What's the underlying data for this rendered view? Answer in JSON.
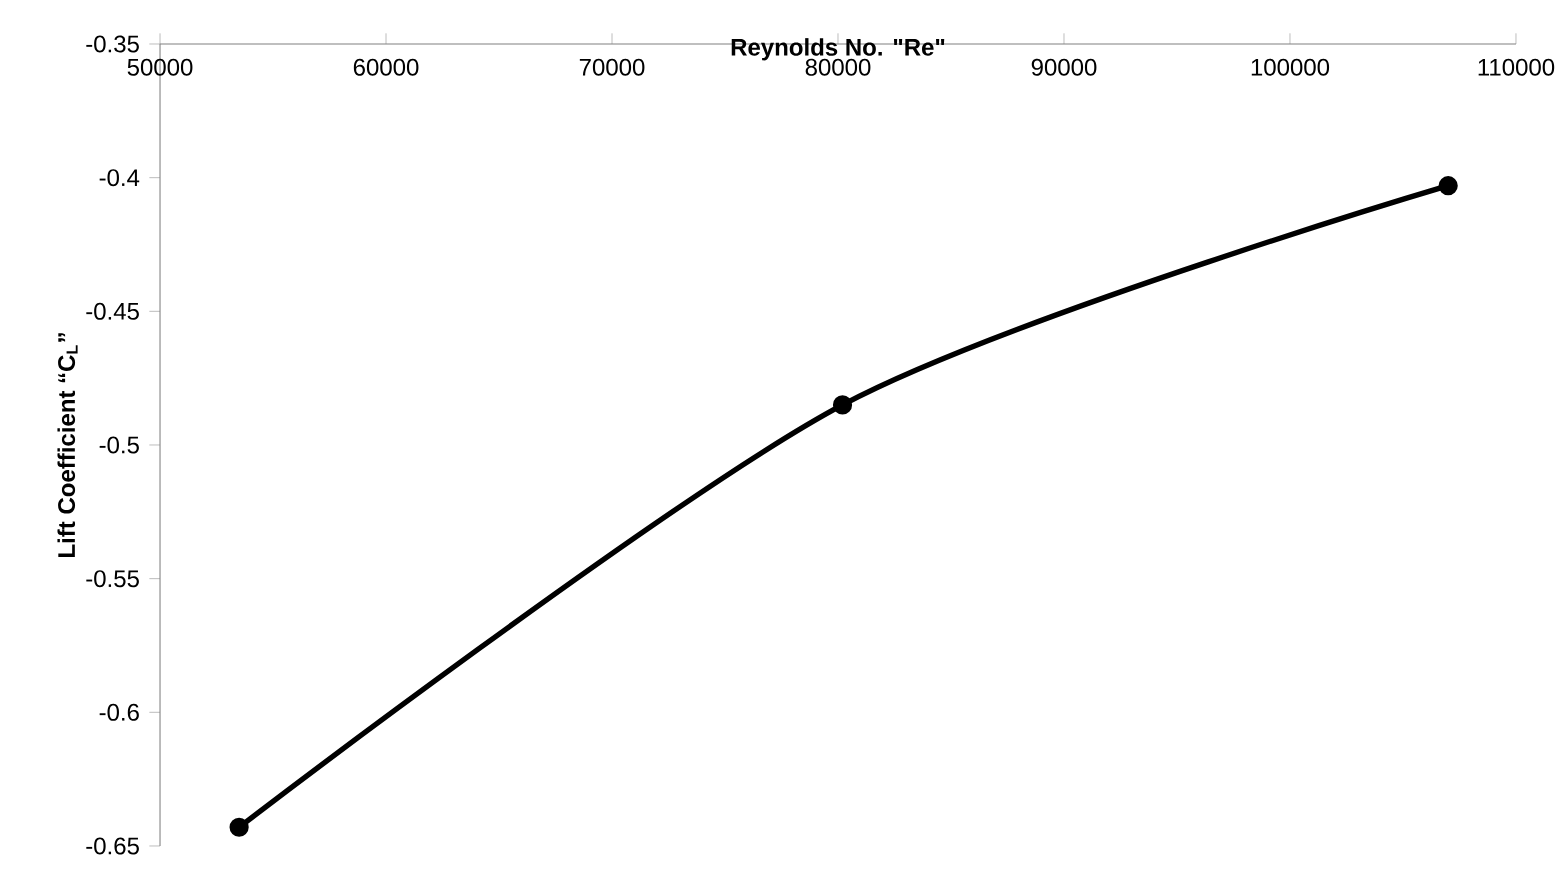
{
  "chart_data": {
    "type": "line",
    "xlabel": "Reynolds No. \"Re\"",
    "ylabel": "Lift Coefficient “C$_{L}$”",
    "x": [
      53500,
      80200,
      107000
    ],
    "series": [
      {
        "color": "#000000",
        "values": [
          -0.643,
          -0.485,
          -0.403
        ]
      }
    ],
    "xlim": [
      50000,
      110000
    ],
    "xticks": [
      50000,
      60000,
      70000,
      80000,
      90000,
      100000,
      110000
    ],
    "ylim": [
      -0.65,
      -0.35
    ],
    "yticks": [
      -0.65,
      -0.6,
      -0.55,
      -0.5,
      -0.45,
      -0.4,
      -0.35
    ],
    "marker": "circle",
    "line_style": "solid"
  }
}
